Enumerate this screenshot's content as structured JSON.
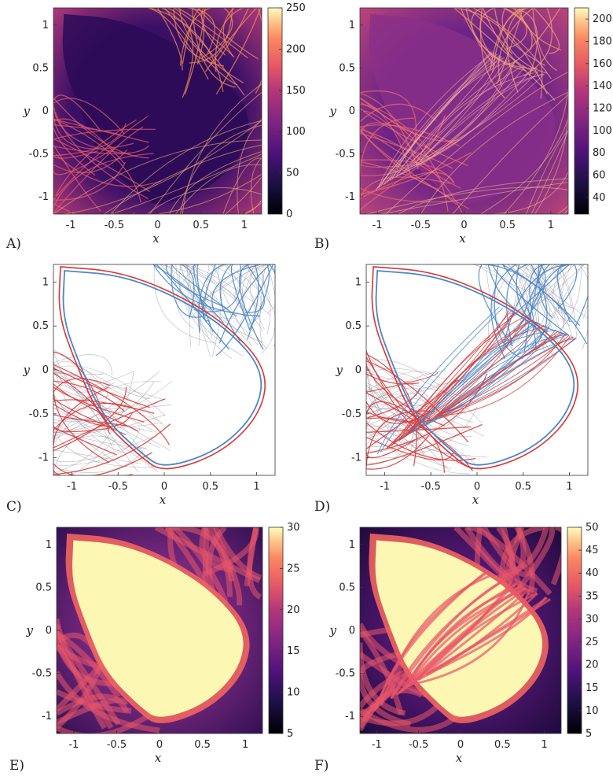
{
  "figure": {
    "panels": [
      {
        "label": "A)",
        "kind": "heatmap",
        "scheme": "dark",
        "has_colorbar": true
      },
      {
        "label": "B)",
        "kind": "heatmap",
        "scheme": "mid",
        "has_colorbar": true
      },
      {
        "label": "C)",
        "kind": "manifold",
        "scheme": "white",
        "has_colorbar": false
      },
      {
        "label": "D)",
        "kind": "manifold",
        "scheme": "white-dense",
        "has_colorbar": false
      },
      {
        "label": "E)",
        "kind": "heatmap",
        "scheme": "bright",
        "has_colorbar": true
      },
      {
        "label": "F)",
        "kind": "heatmap",
        "scheme": "bright-dense",
        "has_colorbar": true
      }
    ],
    "colors": {
      "bg_dark": "#3a1066",
      "bg_mid": "#7a2c8c",
      "bright": "#fcf7b2",
      "manifold_blue": "#4a86c8",
      "manifold_red": "#d83a3a",
      "manifold_gray": "#9a9aa8"
    }
  },
  "chart_data": [
    {
      "type": "heatmap",
      "panel": "A)",
      "xlabel": "x",
      "ylabel": "y",
      "xticks": [
        "-1",
        "-0.5",
        "0",
        "0.5",
        "1"
      ],
      "yticks": [
        "1",
        "0.5",
        "0",
        "-0.5",
        "-1"
      ],
      "xlim": [
        -1.2,
        1.2
      ],
      "ylim": [
        -1.2,
        1.2
      ],
      "colorbar": {
        "ticks": [
          "250",
          "200",
          "150",
          "100",
          "50",
          "0"
        ],
        "range": [
          0,
          250
        ]
      }
    },
    {
      "type": "heatmap",
      "panel": "B)",
      "xlabel": "x",
      "ylabel": "y",
      "xticks": [
        "-1",
        "-0.5",
        "0",
        "0.5",
        "1"
      ],
      "yticks": [
        "1",
        "0.5",
        "0",
        "-0.5",
        "-1"
      ],
      "xlim": [
        -1.2,
        1.2
      ],
      "ylim": [
        -1.2,
        1.2
      ],
      "colorbar": {
        "ticks": [
          "200",
          "180",
          "160",
          "140",
          "120",
          "100",
          "80",
          "60",
          "40"
        ],
        "range": [
          25,
          210
        ]
      }
    },
    {
      "type": "line",
      "panel": "C)",
      "xlabel": "x",
      "ylabel": "y",
      "xticks": [
        "-1",
        "-0.5",
        "0",
        "0.5",
        "1"
      ],
      "yticks": [
        "1",
        "0.5",
        "0",
        "-0.5",
        "-1"
      ],
      "xlim": [
        -1.2,
        1.2
      ],
      "ylim": [
        -1.2,
        1.2
      ]
    },
    {
      "type": "line",
      "panel": "D)",
      "xlabel": "x",
      "ylabel": "y",
      "xticks": [
        "-1",
        "-0.5",
        "0",
        "0.5",
        "1"
      ],
      "yticks": [
        "1",
        "0.5",
        "0",
        "-0.5",
        "-1"
      ],
      "xlim": [
        -1.2,
        1.2
      ],
      "ylim": [
        -1.2,
        1.2
      ]
    },
    {
      "type": "heatmap",
      "panel": "E)",
      "xlabel": "x",
      "ylabel": "y",
      "xticks": [
        "-1",
        "-0.5",
        "0",
        "0.5",
        "1"
      ],
      "yticks": [
        "1",
        "0.5",
        "0",
        "-0.5",
        "-1"
      ],
      "xlim": [
        -1.2,
        1.2
      ],
      "ylim": [
        -1.2,
        1.2
      ],
      "colorbar": {
        "ticks": [
          "30",
          "25",
          "20",
          "15",
          "10",
          "5"
        ],
        "range": [
          5,
          30
        ]
      }
    },
    {
      "type": "heatmap",
      "panel": "F)",
      "xlabel": "x",
      "ylabel": "y",
      "xticks": [
        "-1",
        "-0.5",
        "0",
        "0.5",
        "1"
      ],
      "yticks": [
        "1",
        "0.5",
        "0",
        "-0.5",
        "-1"
      ],
      "xlim": [
        -1.2,
        1.2
      ],
      "ylim": [
        -1.2,
        1.2
      ],
      "colorbar": {
        "ticks": [
          "50",
          "45",
          "40",
          "35",
          "30",
          "25",
          "20",
          "15",
          "10",
          "5"
        ],
        "range": [
          5,
          50
        ]
      }
    }
  ]
}
